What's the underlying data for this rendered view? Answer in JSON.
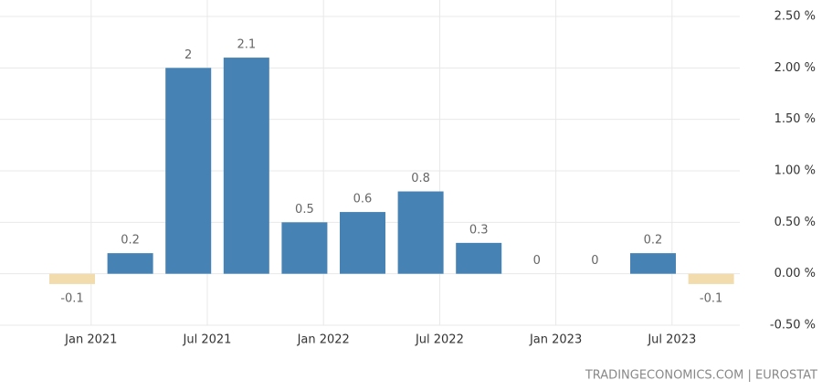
{
  "chart_data": {
    "type": "bar",
    "categories": [
      null,
      null,
      null,
      null,
      null,
      null,
      null,
      null,
      null,
      null,
      null,
      null
    ],
    "values": [
      -0.1,
      0.2,
      2,
      2.1,
      0.5,
      0.6,
      0.8,
      0.3,
      0,
      0,
      0.2,
      -0.1
    ],
    "color": "#4682b4",
    "negative_color": "#f2dcae",
    "x_tick_labels": [
      "Jan 2021",
      "Jul 2021",
      "Jan 2022",
      "Jul 2022",
      "Jan 2023",
      "Jul 2023"
    ],
    "ylim": [
      -0.5,
      2.5
    ],
    "yticks": [
      {
        "value": -0.5,
        "label": "-0.50 %"
      },
      {
        "value": 0,
        "label": "0.00 %"
      },
      {
        "value": 0.5,
        "label": "0.50 %"
      },
      {
        "value": 1,
        "label": "1.00 %"
      },
      {
        "value": 1.5,
        "label": "1.50 %"
      },
      {
        "value": 2,
        "label": "2.00 %"
      },
      {
        "value": 2.5,
        "label": "2.50 %"
      }
    ],
    "grid": true,
    "source": "TRADINGECONOMICS.COM | EUROSTAT"
  }
}
